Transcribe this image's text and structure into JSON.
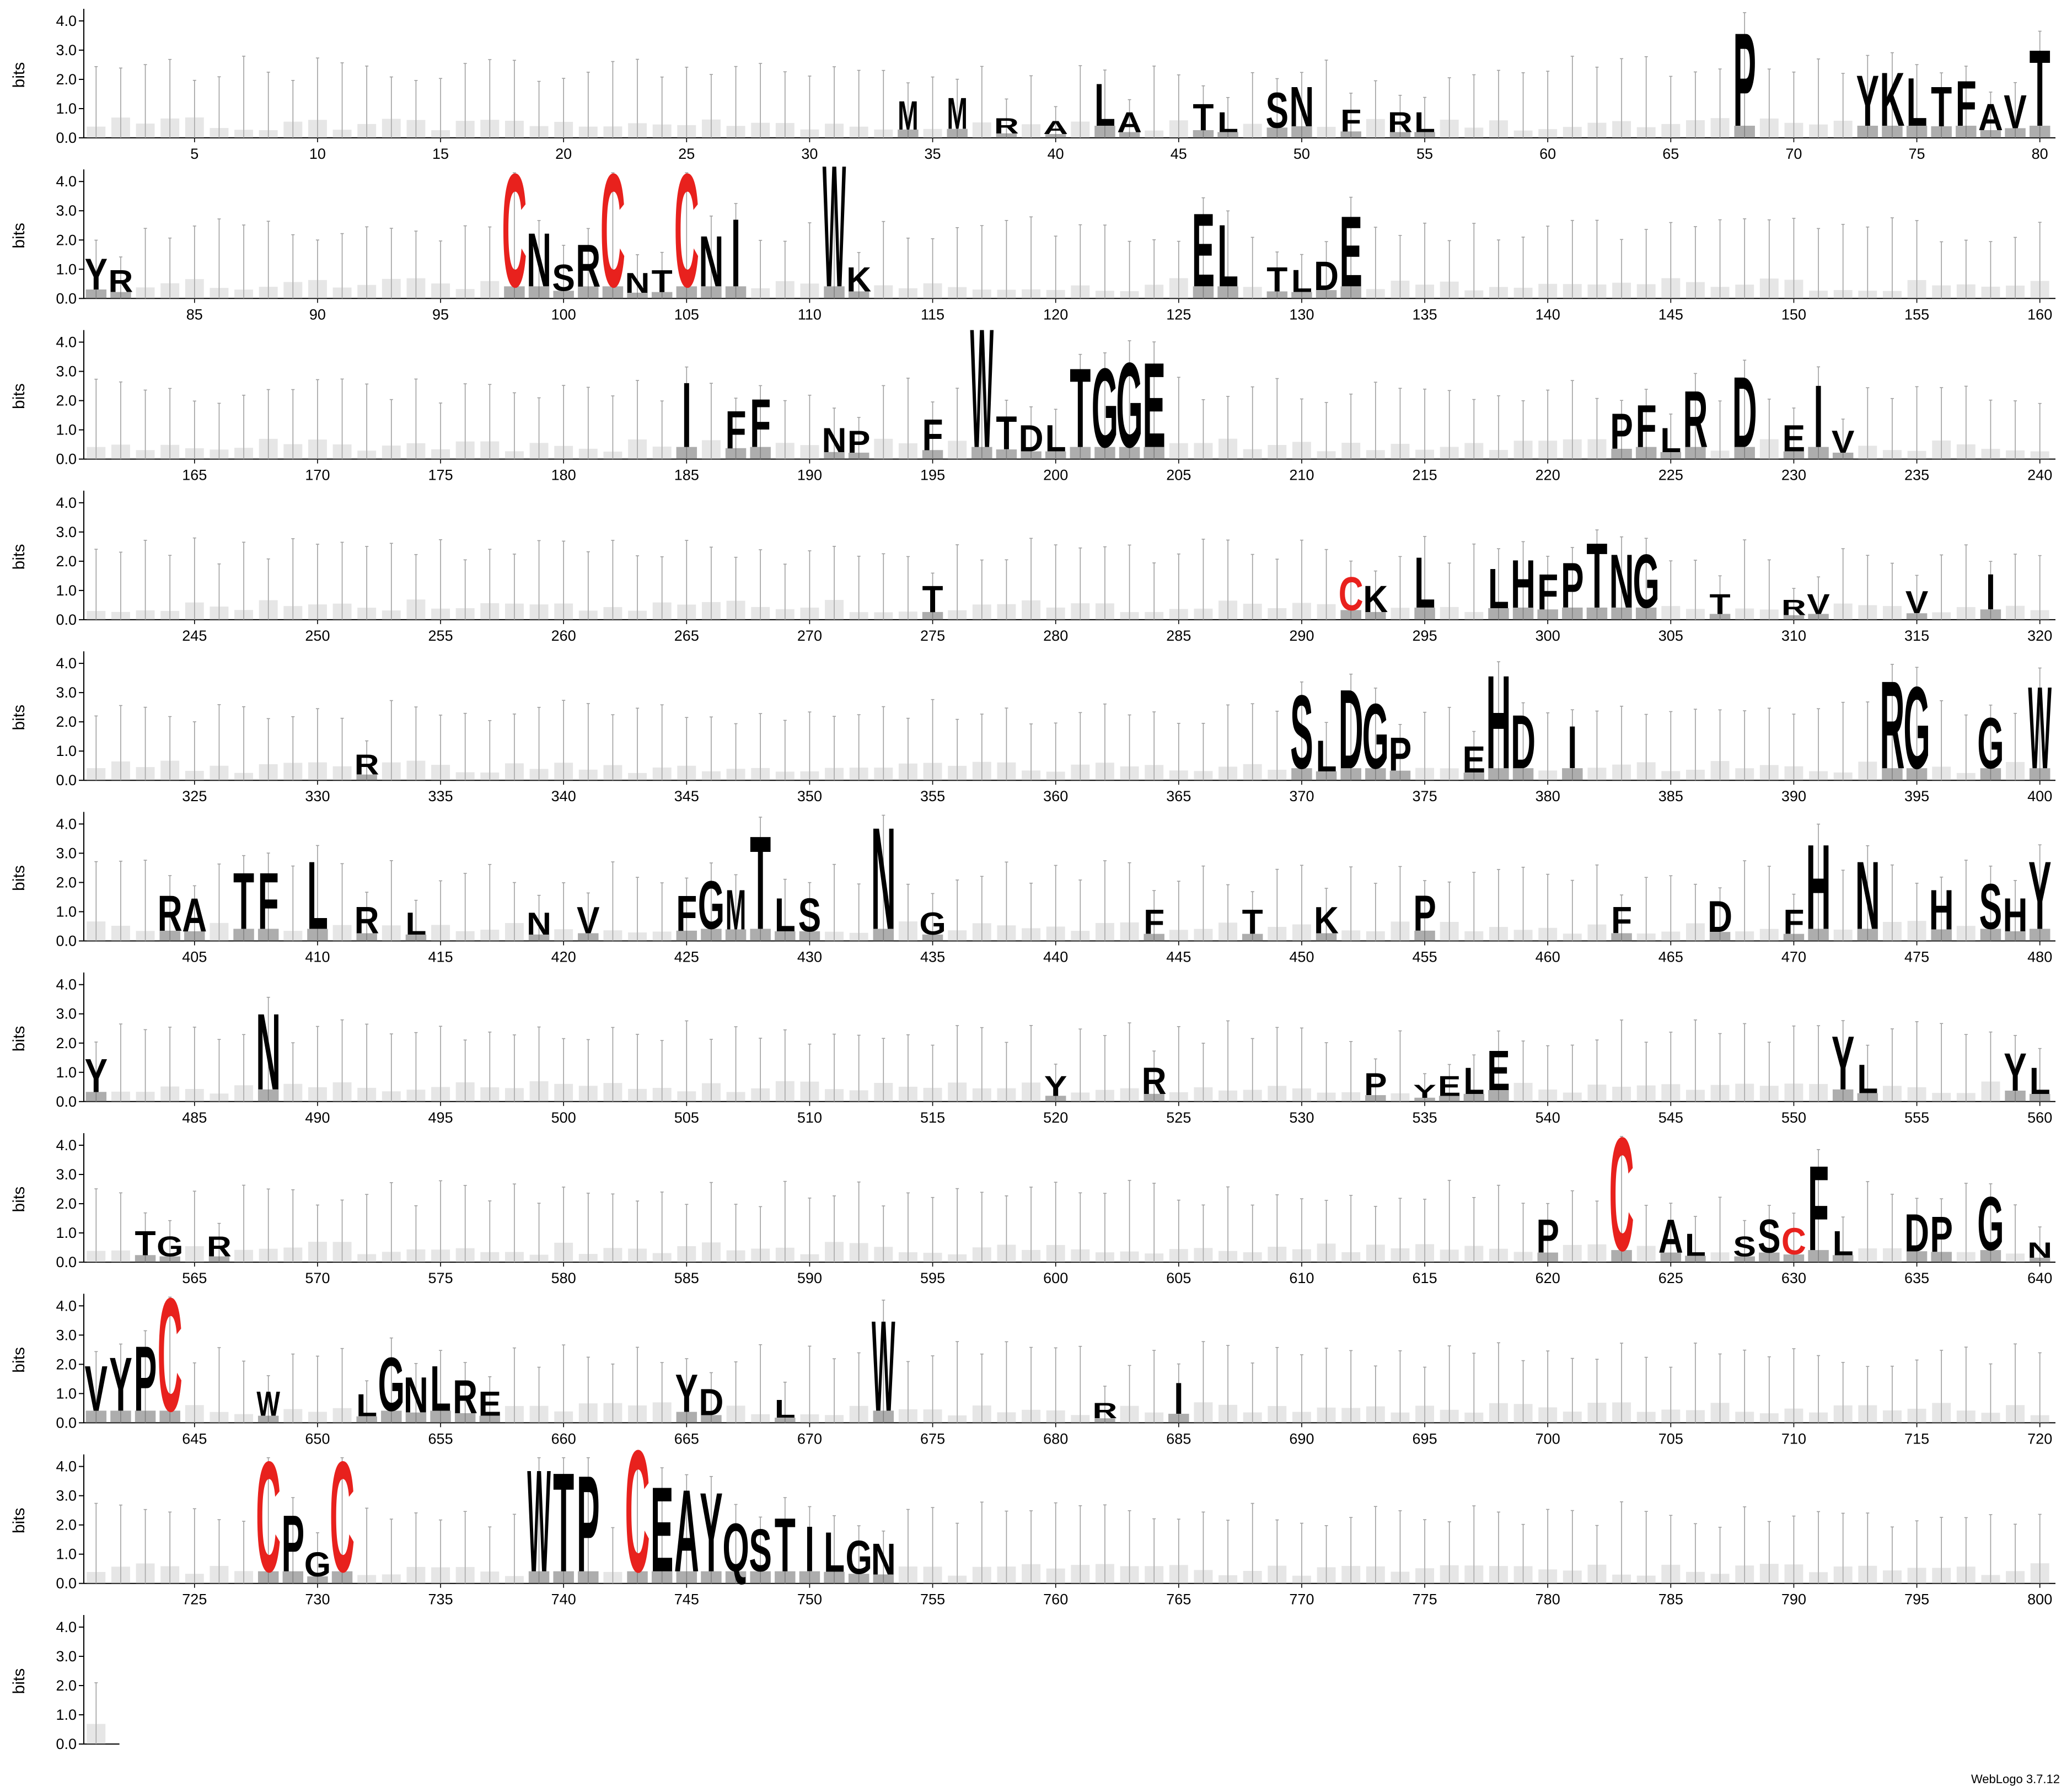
{
  "chart_data": {
    "type": "sequence_logo",
    "ylabel": "bits",
    "ylim": [
      0,
      4.3
    ],
    "yticks": [
      "0.0",
      "1.0",
      "2.0",
      "3.0",
      "4.0"
    ],
    "positions_per_row": 80,
    "total_positions": 801,
    "xtick_labels_every": 5,
    "colors": {
      "default": "#000000",
      "cysteine": "#e8211d",
      "error_bar": "#a0a0a0",
      "axis": "#000000"
    },
    "columns": [
      [
        34,
        "M",
        1.3
      ],
      [
        36,
        "M",
        1.4
      ],
      [
        38,
        "R",
        0.7
      ],
      [
        40,
        "A",
        0.6
      ],
      [
        42,
        "L",
        1.9
      ],
      [
        43,
        "A",
        0.9
      ],
      [
        46,
        "T",
        1.2
      ],
      [
        47,
        "L",
        0.9
      ],
      [
        49,
        "S",
        1.6
      ],
      [
        50,
        "N",
        1.8
      ],
      [
        52,
        "F",
        1.0
      ],
      [
        54,
        "R",
        0.9
      ],
      [
        55,
        "L",
        0.9
      ],
      [
        68,
        "P",
        3.7
      ],
      [
        73,
        "Y",
        2.2
      ],
      [
        74,
        "K",
        2.3
      ],
      [
        75,
        "L",
        2.1
      ],
      [
        76,
        "T",
        1.8
      ],
      [
        77,
        "F",
        2.0
      ],
      [
        78,
        "A",
        1.2
      ],
      [
        79,
        "V",
        1.5
      ],
      [
        80,
        "T",
        3.1
      ],
      [
        81,
        "Y",
        1.4
      ],
      [
        82,
        "R",
        1.0
      ],
      [
        98,
        "C",
        4.4
      ],
      [
        99,
        "N",
        2.3
      ],
      [
        100,
        "S",
        1.2
      ],
      [
        101,
        "R",
        1.9
      ],
      [
        102,
        "C",
        4.4
      ],
      [
        103,
        "N",
        0.9
      ],
      [
        104,
        "T",
        1.0
      ],
      [
        105,
        "C",
        4.4
      ],
      [
        106,
        "N",
        2.2
      ],
      [
        107,
        "I",
        2.8
      ],
      [
        111,
        "W",
        4.7
      ],
      [
        112,
        "K",
        1.1
      ],
      [
        126,
        "E",
        3.0
      ],
      [
        127,
        "L",
        2.6
      ],
      [
        129,
        "T",
        1.1
      ],
      [
        130,
        "L",
        1.0
      ],
      [
        131,
        "D",
        1.3
      ],
      [
        132,
        "E",
        2.9
      ],
      [
        185,
        "I",
        2.7
      ],
      [
        187,
        "F",
        1.7
      ],
      [
        188,
        "F",
        2.1
      ],
      [
        191,
        "N",
        1.1
      ],
      [
        192,
        "P",
        1.0
      ],
      [
        195,
        "F",
        1.4
      ],
      [
        197,
        "W",
        4.6
      ],
      [
        198,
        "T",
        1.5
      ],
      [
        199,
        "D",
        1.2
      ],
      [
        200,
        "L",
        1.2
      ],
      [
        201,
        "T",
        3.2
      ],
      [
        202,
        "G",
        3.2
      ],
      [
        203,
        "G",
        3.4
      ],
      [
        204,
        "E",
        3.4
      ],
      [
        223,
        "P",
        1.6
      ],
      [
        224,
        "F",
        1.9
      ],
      [
        225,
        "L",
        1.1
      ],
      [
        226,
        "R",
        2.4
      ],
      [
        228,
        "D",
        2.9
      ],
      [
        230,
        "E",
        1.2
      ],
      [
        231,
        "I",
        2.6
      ],
      [
        232,
        "V",
        1.0
      ],
      [
        275,
        "T",
        1.2
      ],
      [
        292,
        "C",
        1.5
      ],
      [
        293,
        "K",
        1.2
      ],
      [
        295,
        "L",
        2.2
      ],
      [
        298,
        "L",
        1.8
      ],
      [
        299,
        "H",
        2.1
      ],
      [
        300,
        "F",
        1.6
      ],
      [
        301,
        "P",
        2.0
      ],
      [
        302,
        "T",
        2.7
      ],
      [
        303,
        "N",
        2.3
      ],
      [
        304,
        "G",
        2.3
      ],
      [
        307,
        "T",
        0.9
      ],
      [
        310,
        "R",
        0.7
      ],
      [
        311,
        "V",
        0.9
      ],
      [
        315,
        "V",
        1.0
      ],
      [
        318,
        "I",
        1.6
      ],
      [
        332,
        "R",
        0.9
      ],
      [
        370,
        "S",
        3.0
      ],
      [
        371,
        "L",
        1.4
      ],
      [
        372,
        "D",
        3.2
      ],
      [
        373,
        "G",
        2.7
      ],
      [
        374,
        "P",
        1.5
      ],
      [
        377,
        "E",
        1.2
      ],
      [
        378,
        "H",
        3.7
      ],
      [
        379,
        "D",
        2.3
      ],
      [
        381,
        "I",
        1.9
      ],
      [
        394,
        "R",
        3.5
      ],
      [
        395,
        "G",
        3.3
      ],
      [
        398,
        "G",
        2.2
      ],
      [
        400,
        "W",
        3.3
      ],
      [
        404,
        "R",
        1.6
      ],
      [
        405,
        "A",
        1.5
      ],
      [
        407,
        "T",
        2.4
      ],
      [
        408,
        "F",
        2.4
      ],
      [
        410,
        "L",
        2.8
      ],
      [
        412,
        "R",
        1.2
      ],
      [
        414,
        "L",
        1.0
      ],
      [
        419,
        "N",
        1.0
      ],
      [
        421,
        "V",
        1.2
      ],
      [
        425,
        "F",
        1.6
      ],
      [
        426,
        "G",
        2.1
      ],
      [
        427,
        "M",
        1.8
      ],
      [
        428,
        "T",
        3.7
      ],
      [
        429,
        "L",
        1.5
      ],
      [
        430,
        "S",
        1.5
      ],
      [
        433,
        "N",
        4.0
      ],
      [
        435,
        "G",
        1.0
      ],
      [
        444,
        "F",
        1.1
      ],
      [
        448,
        "T",
        1.1
      ],
      [
        451,
        "K",
        1.2
      ],
      [
        455,
        "P",
        1.6
      ],
      [
        463,
        "F",
        1.2
      ],
      [
        467,
        "D",
        1.4
      ],
      [
        470,
        "F",
        1.1
      ],
      [
        471,
        "H",
        3.4
      ],
      [
        473,
        "N",
        2.8
      ],
      [
        476,
        "H",
        1.8
      ],
      [
        478,
        "S",
        2.0
      ],
      [
        479,
        "H",
        1.5
      ],
      [
        480,
        "Y",
        2.8
      ],
      [
        481,
        "Y",
        1.5
      ],
      [
        488,
        "N",
        3.1
      ],
      [
        520,
        "Y",
        0.9
      ],
      [
        524,
        "R",
        1.2
      ],
      [
        533,
        "P",
        1.0
      ],
      [
        535,
        "Y",
        0.6
      ],
      [
        536,
        "E",
        0.9
      ],
      [
        537,
        "L",
        1.2
      ],
      [
        538,
        "E",
        1.8
      ],
      [
        552,
        "Y",
        2.3
      ],
      [
        553,
        "L",
        1.3
      ],
      [
        559,
        "Y",
        1.7
      ],
      [
        560,
        "L",
        1.2
      ],
      [
        563,
        "T",
        1.1
      ],
      [
        564,
        "G",
        0.9
      ],
      [
        566,
        "R",
        0.9
      ],
      [
        620,
        "P",
        1.5
      ],
      [
        623,
        "C",
        4.4
      ],
      [
        625,
        "A",
        1.5
      ],
      [
        626,
        "L",
        1.0
      ],
      [
        628,
        "S",
        0.9
      ],
      [
        629,
        "S",
        1.5
      ],
      [
        630,
        "C",
        1.2
      ],
      [
        631,
        "F",
        3.4
      ],
      [
        632,
        "L",
        1.1
      ],
      [
        635,
        "D",
        1.7
      ],
      [
        636,
        "P",
        1.6
      ],
      [
        638,
        "G",
        2.3
      ],
      [
        640,
        "N",
        0.7
      ],
      [
        641,
        "V",
        2.0
      ],
      [
        642,
        "Y",
        2.3
      ],
      [
        643,
        "P",
        2.7
      ],
      [
        644,
        "C",
        4.4
      ],
      [
        648,
        "W",
        1.1
      ],
      [
        652,
        "L",
        1.0
      ],
      [
        653,
        "G",
        2.3
      ],
      [
        654,
        "N",
        1.6
      ],
      [
        655,
        "L",
        2.0
      ],
      [
        656,
        "R",
        1.5
      ],
      [
        657,
        "E",
        1.1
      ],
      [
        665,
        "Y",
        1.7
      ],
      [
        666,
        "D",
        1.2
      ],
      [
        669,
        "L",
        0.8
      ],
      [
        673,
        "W",
        3.6
      ],
      [
        682,
        "R",
        0.7
      ],
      [
        685,
        "I",
        1.4
      ],
      [
        728,
        "C",
        4.3
      ],
      [
        729,
        "P",
        2.4
      ],
      [
        730,
        "G",
        1.1
      ],
      [
        731,
        "C",
        4.3
      ],
      [
        739,
        "W",
        4.0
      ],
      [
        740,
        "T",
        3.9
      ],
      [
        741,
        "P",
        3.8
      ],
      [
        743,
        "C",
        4.7
      ],
      [
        744,
        "E",
        3.4
      ],
      [
        745,
        "A",
        3.3
      ],
      [
        746,
        "Y",
        3.2
      ],
      [
        747,
        "Q",
        2.1
      ],
      [
        748,
        "S",
        1.9
      ],
      [
        749,
        "T",
        2.3
      ],
      [
        750,
        "I",
        2.0
      ],
      [
        751,
        "L",
        1.8
      ],
      [
        752,
        "G",
        1.5
      ],
      [
        753,
        "N",
        1.4
      ]
    ]
  },
  "footer": {
    "credit": "WebLogo 3.7.12"
  }
}
